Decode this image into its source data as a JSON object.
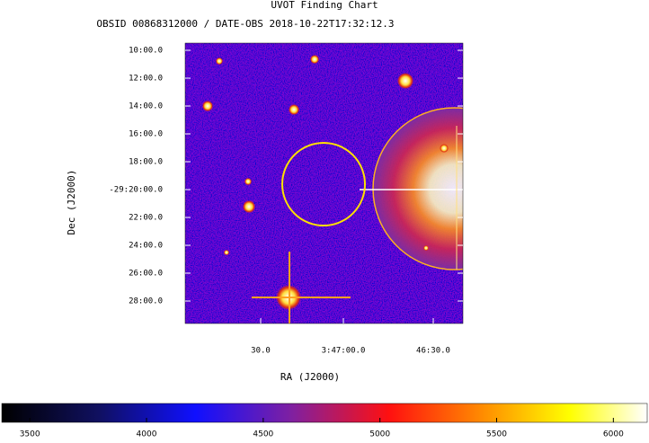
{
  "title": "UVOT Finding Chart",
  "subtitle": "OBSID 00868312000 / DATE-OBS 2018-10-22T17:32:12.3",
  "y_axis": {
    "label": "Dec (J2000)",
    "ticks": [
      "10:00.0",
      "12:00.0",
      "14:00.0",
      "16:00.0",
      "18:00.0",
      "-29:20:00.0",
      "22:00.0",
      "24:00.0",
      "26:00.0",
      "28:00.0"
    ]
  },
  "x_axis": {
    "label": "RA (J2000)",
    "ticks": [
      "30.0",
      "3:47:00.0",
      "46:30.0"
    ]
  },
  "colorbar": {
    "lim": [
      3380,
      6145
    ],
    "ticks": [
      3500,
      4000,
      4500,
      5000,
      5500,
      6000
    ]
  }
}
